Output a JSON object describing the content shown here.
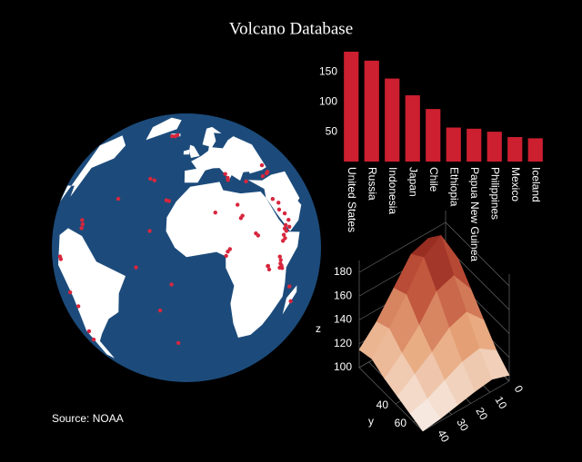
{
  "title": "Volcano Database",
  "source": "Source: NOAA",
  "chart_data": [
    {
      "type": "bar",
      "categories": [
        "United States",
        "Russia",
        "Indonesia",
        "Japan",
        "Chile",
        "Ethiopia",
        "Papua New Guinea",
        "Philippines",
        "Mexico",
        "Iceland"
      ],
      "values": [
        184,
        169,
        139,
        111,
        88,
        57,
        55,
        50,
        41,
        39
      ],
      "color": "#cc1f2f",
      "ylim": [
        0,
        190
      ],
      "yticks": [
        50,
        100,
        150
      ]
    },
    {
      "type": "scattergeo",
      "projection": "orthographic",
      "center": {
        "lon": -8,
        "lat": 8
      },
      "ocean_color": "#1c4b7b",
      "land_color": "#ffffff",
      "color": "#d7263d",
      "lon": [
        -19,
        -17,
        -22,
        -28,
        -25.5,
        -16.5,
        -17.8,
        -24.4,
        14.4,
        15,
        15.2,
        25.4,
        38,
        42,
        43.5,
        42.4,
        44,
        44.5,
        40,
        41,
        38,
        43,
        40.7,
        39.5,
        38.5,
        40,
        41.5,
        36,
        36.5,
        37,
        37.4,
        36.3,
        35.9,
        29.2,
        29.4,
        30,
        9.2,
        10,
        11,
        18.5,
        17.5,
        5.5,
        17,
        24,
        25,
        47,
        43.4,
        -12.3,
        -14.4,
        -30,
        -20,
        -78,
        -77,
        -72,
        -68,
        -70,
        -72,
        -61,
        -62,
        -61.2,
        -43,
        41.8
      ],
      "lat": [
        64,
        65,
        64,
        38.5,
        37.8,
        28.3,
        28.6,
        14.9,
        40.8,
        37.7,
        38.8,
        36.4,
        38,
        39,
        39.7,
        43.3,
        14,
        17,
        22,
        25,
        27,
        20,
        13.6,
        11,
        8.5,
        9.5,
        12.5,
        2,
        0.5,
        -2,
        -3.1,
        -1,
        -2.8,
        -1.5,
        -1.4,
        -3,
        4.2,
        6,
        7,
        21,
        20,
        23,
        26,
        13,
        12,
        -19,
        -11.8,
        -37.1,
        -7.9,
        -1,
        -20,
        -1,
        -2,
        -16,
        -22,
        -35,
        -40,
        15,
        16.7,
        13.3,
        28,
        15
      ]
    },
    {
      "type": "surface",
      "x": [
        0,
        9,
        18,
        27,
        36,
        45
      ],
      "y": [
        0,
        14,
        28,
        42,
        56,
        70
      ],
      "z": [
        [
          150,
          175,
          170,
          150,
          130,
          115
        ],
        [
          160,
          188,
          178,
          155,
          135,
          118
        ],
        [
          145,
          165,
          160,
          140,
          125,
          112
        ],
        [
          130,
          145,
          140,
          128,
          118,
          108
        ],
        [
          115,
          125,
          122,
          115,
          108,
          104
        ],
        [
          105,
          110,
          108,
          105,
          102,
          100
        ]
      ],
      "xlim": [
        0,
        45
      ],
      "ylim": [
        0,
        70
      ],
      "zlim": [
        100,
        190
      ],
      "xticks": [
        0,
        10,
        20,
        30,
        40
      ],
      "yticks": [
        40,
        60
      ],
      "zticks": [
        100,
        120,
        140,
        160,
        180
      ],
      "ylabel": "y",
      "zlabel": "z",
      "colorscale": [
        "#f8f1ec",
        "#e8a77c",
        "#c0533a",
        "#7c1212"
      ]
    }
  ]
}
